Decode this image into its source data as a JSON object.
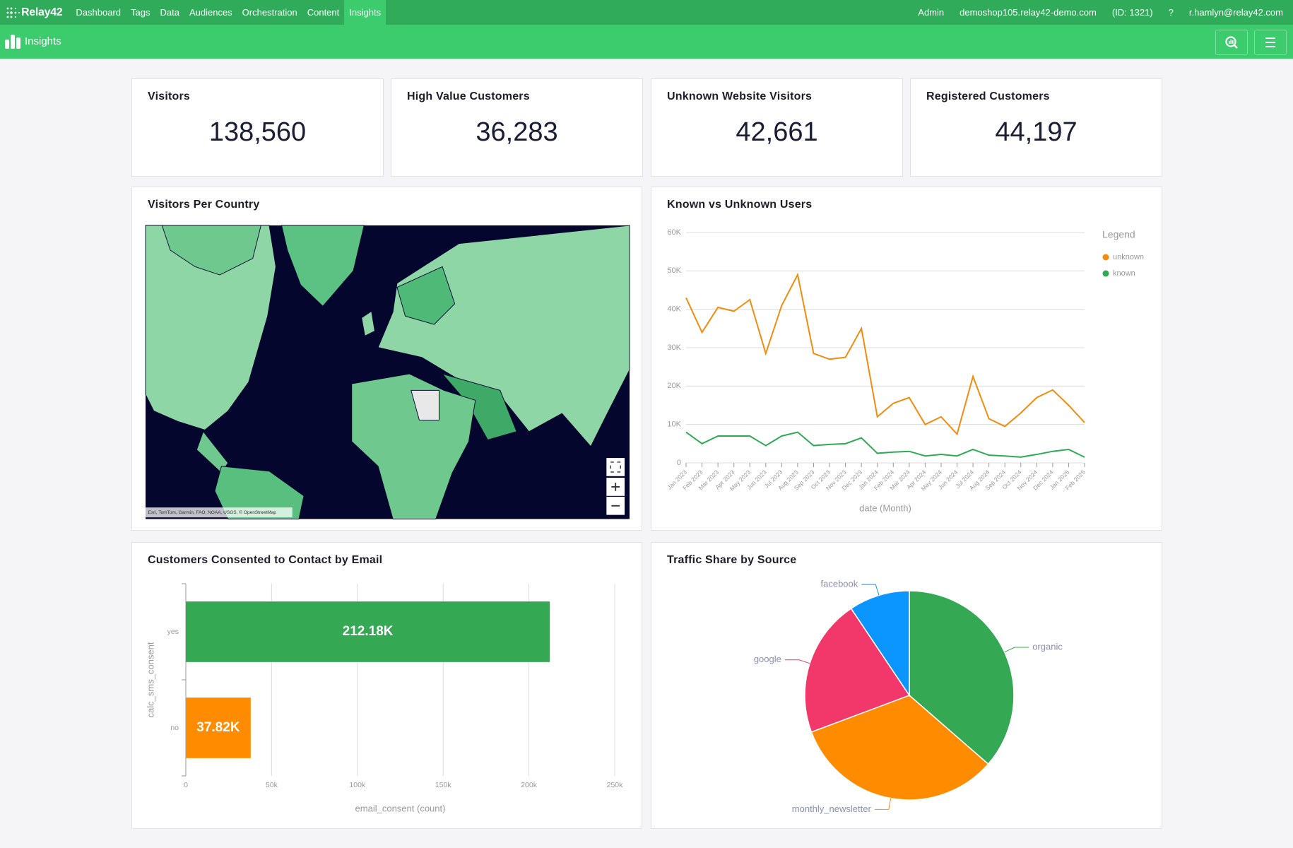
{
  "nav": {
    "brand": "Relay42",
    "items": [
      "Dashboard",
      "Tags",
      "Data",
      "Audiences",
      "Orchestration",
      "Content",
      "Insights"
    ],
    "active": 6,
    "right": [
      "Admin",
      "demoshop105.relay42-demo.com",
      "(ID: 1321)",
      "?",
      "r.hamlyn@relay42.com"
    ]
  },
  "page_title": "Insights",
  "kpis": [
    {
      "label": "Visitors",
      "value": "138,560"
    },
    {
      "label": "High Value Customers",
      "value": "36,283"
    },
    {
      "label": "Unknown Website Visitors",
      "value": "42,661"
    },
    {
      "label": "Registered Customers",
      "value": "44,197"
    }
  ],
  "map": {
    "title": "Visitors Per Country",
    "attribution": "Esri, TomTom, Garmin, FAO, NOAA, USGS, © OpenStreetMap"
  },
  "chart_data": [
    {
      "type": "line",
      "title": "Known vs Unknown Users",
      "x": [
        "Jan 2023",
        "Feb 2023",
        "Mar 2023",
        "Apr 2023",
        "May 2023",
        "Jun 2023",
        "Jul 2023",
        "Aug 2023",
        "Sep 2023",
        "Oct 2023",
        "Nov 2023",
        "Dec 2023",
        "Jan 2024",
        "Feb 2024",
        "Mar 2024",
        "Apr 2024",
        "May 2024",
        "Jun 2024",
        "Jul 2024",
        "Aug 2024",
        "Sep 2024",
        "Oct 2024",
        "Nov 2024",
        "Dec 2024",
        "Jan 2025",
        "Feb 2025"
      ],
      "series": [
        {
          "name": "unknown",
          "color": "#f28c0f",
          "values": [
            43000,
            34000,
            40500,
            39500,
            42500,
            28500,
            41000,
            49000,
            28500,
            27000,
            27500,
            35000,
            12000,
            15500,
            17000,
            10000,
            12000,
            7500,
            22500,
            11500,
            9500,
            13000,
            17000,
            19000,
            15000,
            10500
          ]
        },
        {
          "name": "known",
          "color": "#2eaa55",
          "values": [
            8000,
            5000,
            7000,
            7000,
            7000,
            4500,
            7000,
            8000,
            4500,
            4800,
            5000,
            6500,
            2500,
            2800,
            3000,
            1800,
            2200,
            1800,
            3500,
            2000,
            1800,
            1500,
            2200,
            3000,
            3500,
            1500
          ]
        }
      ],
      "ylim": [
        0,
        60000
      ],
      "yticks": [
        0,
        {
          "value": 10000,
          "label": "10K"
        },
        {
          "value": 20000,
          "label": "20K"
        },
        {
          "value": 30000,
          "label": "30K"
        },
        {
          "value": 40000,
          "label": "40K"
        },
        {
          "value": 50000,
          "label": "50K"
        },
        {
          "value": 60000,
          "label": "60K"
        }
      ],
      "xlabel": "date (Month)",
      "legend_title": "Legend",
      "legend": "right",
      "grid": true
    },
    {
      "type": "bar",
      "orientation": "horizontal",
      "title": "Customers Consented to Contact by Email",
      "categories": [
        "yes",
        "no"
      ],
      "values": [
        212180,
        37820
      ],
      "value_labels": [
        "212.18K",
        "37.82K"
      ],
      "colors": [
        "#34a853",
        "#ff8c00"
      ],
      "xlim": [
        0,
        250000
      ],
      "xticks": [
        0,
        {
          "value": 50000,
          "label": "50k"
        },
        {
          "value": 100000,
          "label": "100k"
        },
        {
          "value": 150000,
          "label": "150k"
        },
        {
          "value": 200000,
          "label": "200k"
        },
        {
          "value": 250000,
          "label": "250k"
        }
      ],
      "xlabel": "email_consent (count)",
      "ylabel": "calc_sms_consent",
      "grid": true
    },
    {
      "type": "pie",
      "title": "Traffic Share by Source",
      "categories": [
        "organic",
        "monthly_newsletter",
        "google",
        "facebook"
      ],
      "values": [
        36.4,
        32.9,
        21.3,
        9.4
      ],
      "colors": [
        "#34a853",
        "#ff8c00",
        "#f2386b",
        "#0a95ff"
      ]
    }
  ]
}
